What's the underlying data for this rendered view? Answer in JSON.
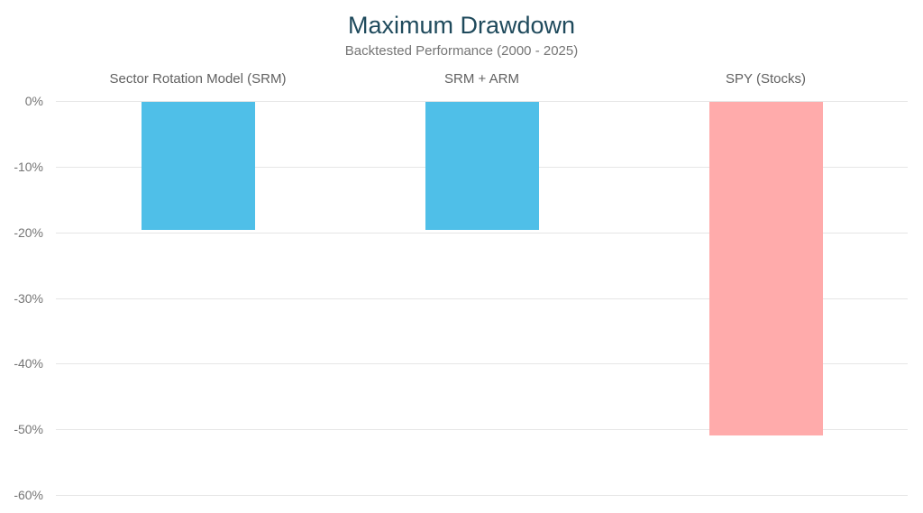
{
  "chart_data": {
    "type": "bar",
    "title": "Maximum Drawdown",
    "subtitle": "Backtested Performance (2000 - 2025)",
    "categories": [
      "Sector Rotation Model (SRM)",
      "SRM + ARM",
      "SPY (Stocks)"
    ],
    "values": [
      -19.6,
      -19.6,
      -51.0
    ],
    "bar_colors": [
      "#4FBFE8",
      "#4FBFE8",
      "#FFABAB"
    ],
    "ylabel": "",
    "xlabel": "",
    "ylim": [
      0,
      -60
    ],
    "yticks": [
      {
        "label": "0%",
        "value": 0
      },
      {
        "label": "-10%",
        "value": -10
      },
      {
        "label": "-20%",
        "value": -20
      },
      {
        "label": "-30%",
        "value": -30
      },
      {
        "label": "-40%",
        "value": -40
      },
      {
        "label": "-50%",
        "value": -50
      },
      {
        "label": "-60%",
        "value": -60
      }
    ],
    "grid": true,
    "legend_position": "none",
    "colors": {
      "title": "#1f4a5c",
      "subtitle": "#757575",
      "tick_label": "#757575",
      "category_label": "#616161",
      "gridline": "#e6e6e6",
      "background": "#ffffff"
    }
  }
}
